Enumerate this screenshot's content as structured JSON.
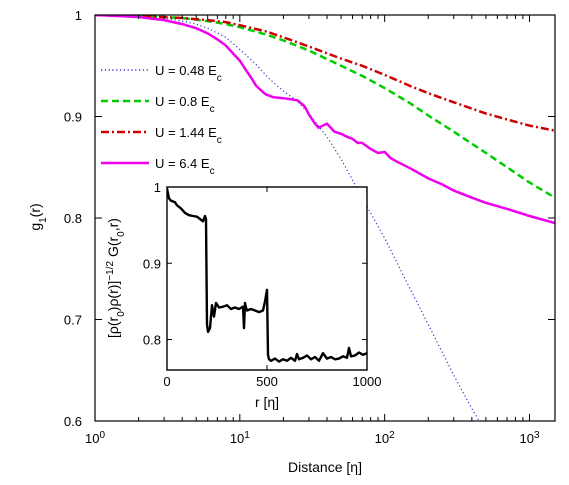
{
  "chart_data": [
    {
      "type": "line",
      "x_scale": "log",
      "xlim": [
        1,
        1500
      ],
      "ylim": [
        0.6,
        1.0
      ],
      "xlabel": "Distance [η]",
      "ylabel": "g",
      "ylabel_sub": "1",
      "ylabel_suffix": "(r)",
      "x_ticks": [
        {
          "value": 1,
          "base": "10",
          "exp": "0"
        },
        {
          "value": 10,
          "base": "10",
          "exp": "1"
        },
        {
          "value": 100,
          "base": "10",
          "exp": "2"
        },
        {
          "value": 1000,
          "base": "10",
          "exp": "3"
        }
      ],
      "y_ticks": [
        {
          "value": 0.6,
          "label": "0.6"
        },
        {
          "value": 0.7,
          "label": "0.7"
        },
        {
          "value": 0.8,
          "label": "0.8"
        },
        {
          "value": 0.9,
          "label": "0.9"
        },
        {
          "value": 1.0,
          "label": "1"
        }
      ],
      "legend_position": "left",
      "series": [
        {
          "name": "U = 0.48 E",
          "name_sub": "c",
          "color": "#3333cc",
          "dash": "dotted",
          "x": [
            1,
            2,
            3,
            4,
            5,
            6,
            8,
            10,
            13,
            16,
            20,
            25,
            30,
            40,
            50,
            70,
            100,
            150,
            200,
            300,
            400,
            500
          ],
          "y": [
            1.0,
            0.999,
            0.997,
            0.994,
            0.991,
            0.987,
            0.978,
            0.966,
            0.951,
            0.937,
            0.925,
            0.915,
            0.903,
            0.88,
            0.858,
            0.82,
            0.78,
            0.73,
            0.695,
            0.645,
            0.612,
            0.589
          ]
        },
        {
          "name": "U = 0.8 E",
          "name_sub": "c",
          "color": "#00cc00",
          "dash": "dashed",
          "x": [
            1,
            2,
            4,
            6,
            8,
            10,
            15,
            20,
            30,
            50,
            70,
            100,
            150,
            200,
            300,
            500,
            700,
            1000,
            1500
          ],
          "y": [
            1.0,
            0.999,
            0.997,
            0.994,
            0.991,
            0.988,
            0.981,
            0.975,
            0.965,
            0.95,
            0.94,
            0.928,
            0.913,
            0.901,
            0.885,
            0.864,
            0.85,
            0.835,
            0.82
          ]
        },
        {
          "name": "U = 1.44 E",
          "name_sub": "c",
          "color": "#cc0000",
          "dash": "dashdot",
          "x": [
            1,
            2,
            4,
            6,
            8,
            10,
            15,
            20,
            30,
            50,
            70,
            100,
            150,
            200,
            300,
            500,
            700,
            1000,
            1500
          ],
          "y": [
            1.0,
            0.999,
            0.997,
            0.995,
            0.993,
            0.99,
            0.984,
            0.978,
            0.969,
            0.957,
            0.95,
            0.941,
            0.93,
            0.923,
            0.914,
            0.903,
            0.897,
            0.891,
            0.886
          ]
        },
        {
          "name": "U = 6.4 E",
          "name_sub": "c",
          "color": "#ee00ee",
          "dash": "solid",
          "x": [
            1,
            2,
            3,
            4,
            5,
            6,
            7,
            8,
            9,
            10,
            11,
            12,
            13,
            15,
            17,
            20,
            25,
            28,
            30,
            33,
            35,
            40,
            45,
            50,
            55,
            60,
            65,
            70,
            80,
            90,
            100,
            110,
            120,
            150,
            200,
            250,
            300,
            400,
            500,
            700,
            1000,
            1500
          ],
          "y": [
            1.0,
            0.998,
            0.995,
            0.991,
            0.987,
            0.982,
            0.976,
            0.97,
            0.962,
            0.955,
            0.946,
            0.938,
            0.93,
            0.922,
            0.919,
            0.918,
            0.916,
            0.91,
            0.902,
            0.893,
            0.889,
            0.893,
            0.885,
            0.883,
            0.88,
            0.878,
            0.874,
            0.874,
            0.868,
            0.864,
            0.865,
            0.859,
            0.856,
            0.849,
            0.839,
            0.833,
            0.827,
            0.82,
            0.815,
            0.809,
            0.802,
            0.795
          ]
        }
      ]
    },
    {
      "type": "line",
      "xlim": [
        0,
        1000
      ],
      "ylim": [
        0.76,
        1.0
      ],
      "xlabel": "r [η]",
      "ylabel": "[ρ(r",
      "ylabel_parts": [
        {
          "text": "[ρ(r"
        },
        {
          "text": "0",
          "shift": "sub"
        },
        {
          "text": ")ρ(r)]"
        },
        {
          "text": "−1/2",
          "shift": "super"
        },
        {
          "text": " G(r"
        },
        {
          "text": "0",
          "shift": "sub"
        },
        {
          "text": ",r)"
        }
      ],
      "x_ticks": [
        {
          "value": 0,
          "label": "0"
        },
        {
          "value": 500,
          "label": "500"
        },
        {
          "value": 1000,
          "label": "1000"
        }
      ],
      "y_ticks": [
        {
          "value": 0.8,
          "label": "0.8"
        },
        {
          "value": 0.9,
          "label": "0.9"
        },
        {
          "value": 1.0,
          "label": "1"
        }
      ],
      "series": [
        {
          "color": "#000000",
          "x": [
            0,
            10,
            20,
            30,
            40,
            50,
            70,
            90,
            110,
            130,
            150,
            170,
            180,
            190,
            195,
            200,
            205,
            215,
            225,
            235,
            245,
            260,
            280,
            300,
            320,
            340,
            360,
            380,
            385,
            390,
            395,
            400,
            420,
            440,
            460,
            480,
            490,
            500,
            505,
            510,
            520,
            540,
            560,
            580,
            600,
            620,
            640,
            650,
            660,
            680,
            700,
            720,
            740,
            760,
            780,
            800,
            820,
            840,
            860,
            880,
            900,
            910,
            920,
            940,
            960,
            980,
            1000
          ],
          "y": [
            0.998,
            0.985,
            0.982,
            0.981,
            0.98,
            0.976,
            0.972,
            0.966,
            0.963,
            0.962,
            0.961,
            0.957,
            0.955,
            0.962,
            0.958,
            0.82,
            0.81,
            0.815,
            0.845,
            0.83,
            0.848,
            0.842,
            0.843,
            0.845,
            0.84,
            0.842,
            0.84,
            0.843,
            0.815,
            0.848,
            0.842,
            0.838,
            0.84,
            0.838,
            0.836,
            0.838,
            0.85,
            0.865,
            0.78,
            0.774,
            0.772,
            0.775,
            0.771,
            0.774,
            0.772,
            0.776,
            0.772,
            0.781,
            0.774,
            0.776,
            0.779,
            0.774,
            0.777,
            0.772,
            0.782,
            0.775,
            0.777,
            0.774,
            0.775,
            0.778,
            0.776,
            0.789,
            0.778,
            0.779,
            0.783,
            0.78,
            0.782
          ]
        }
      ]
    }
  ]
}
